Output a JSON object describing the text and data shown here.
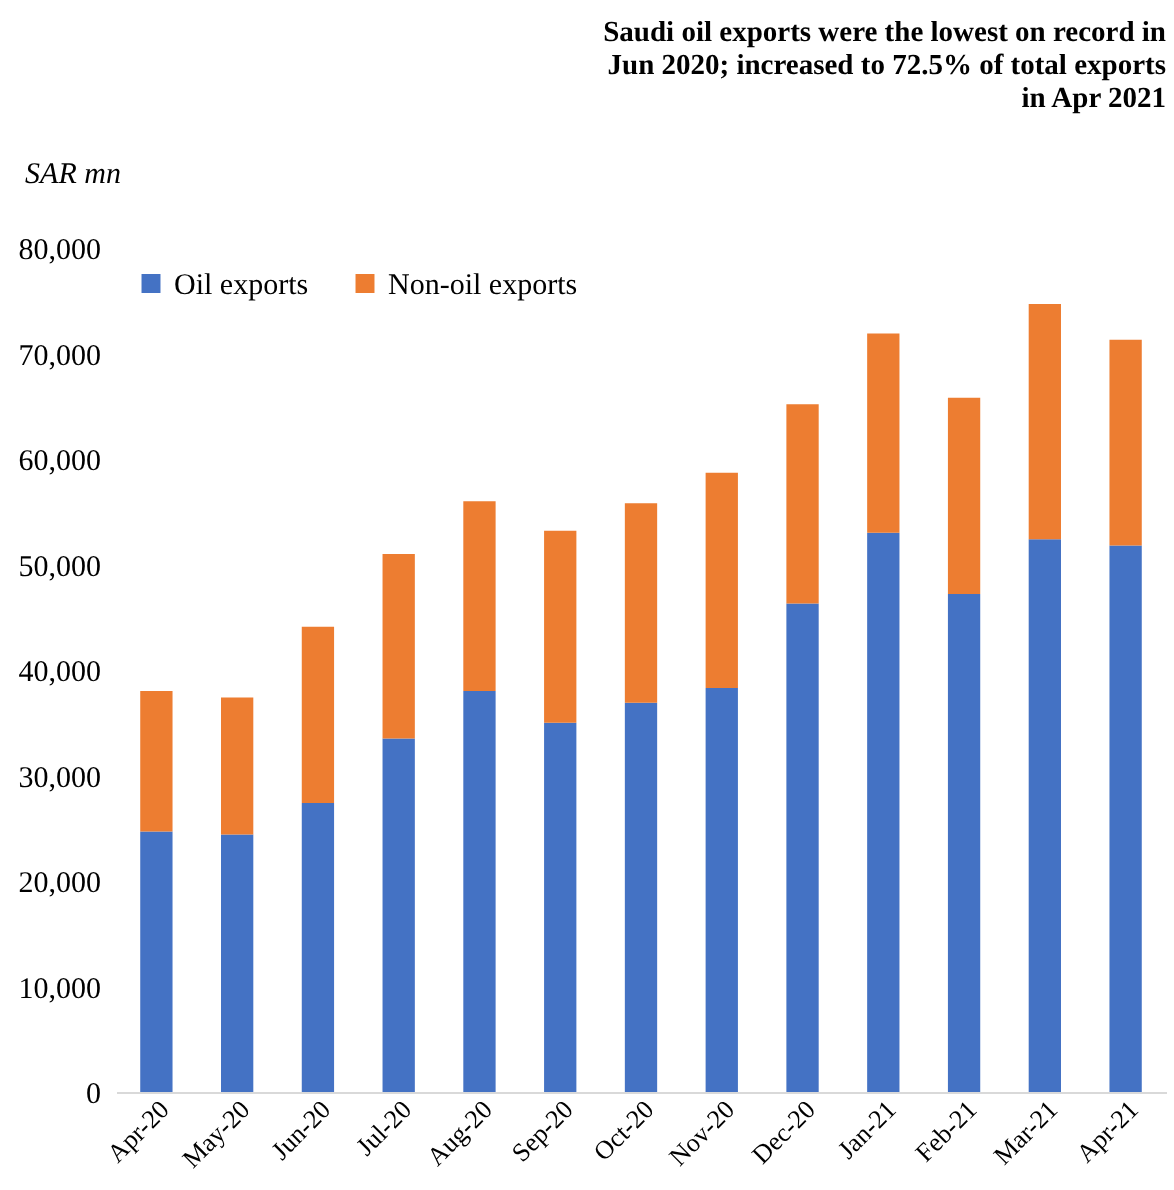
{
  "chart_data": {
    "type": "bar",
    "title": "Saudi oil exports were the lowest on record in Jun 2020; increased to 72.5% of total exports in Apr 2021",
    "ylabel": "SAR mn",
    "categories": [
      "Apr-20",
      "May-20",
      "Jun-20",
      "Jul-20",
      "Aug-20",
      "Sep-20",
      "Oct-20",
      "Nov-20",
      "Dec-20",
      "Jan-21",
      "Feb-21",
      "Mar-21",
      "Apr-21"
    ],
    "series": [
      {
        "name": "Oil exports",
        "color": "#4472c4",
        "values": [
          24700,
          24400,
          27400,
          33500,
          38000,
          35000,
          36900,
          38300,
          46300,
          53000,
          47200,
          52400,
          51800
        ]
      },
      {
        "name": "Non-oil exports",
        "color": "#ed7d31",
        "values": [
          13300,
          13000,
          16700,
          17500,
          18000,
          18200,
          18900,
          20400,
          18900,
          18900,
          18600,
          22300,
          19500
        ]
      }
    ],
    "stacked": true,
    "ylim": [
      0,
      80000
    ],
    "yticks": [
      0,
      {
        "value": 10000,
        "label": "10,000"
      },
      {
        "value": 20000,
        "label": "20,000"
      },
      {
        "value": 30000,
        "label": "30,000"
      },
      {
        "value": 40000,
        "label": "40,000"
      },
      {
        "value": 50000,
        "label": "50,000"
      },
      {
        "value": 60000,
        "label": "60,000"
      },
      {
        "value": 70000,
        "label": "70,000"
      },
      {
        "value": 80000,
        "label": "80,000"
      }
    ],
    "grid": false,
    "legend": "top left"
  }
}
